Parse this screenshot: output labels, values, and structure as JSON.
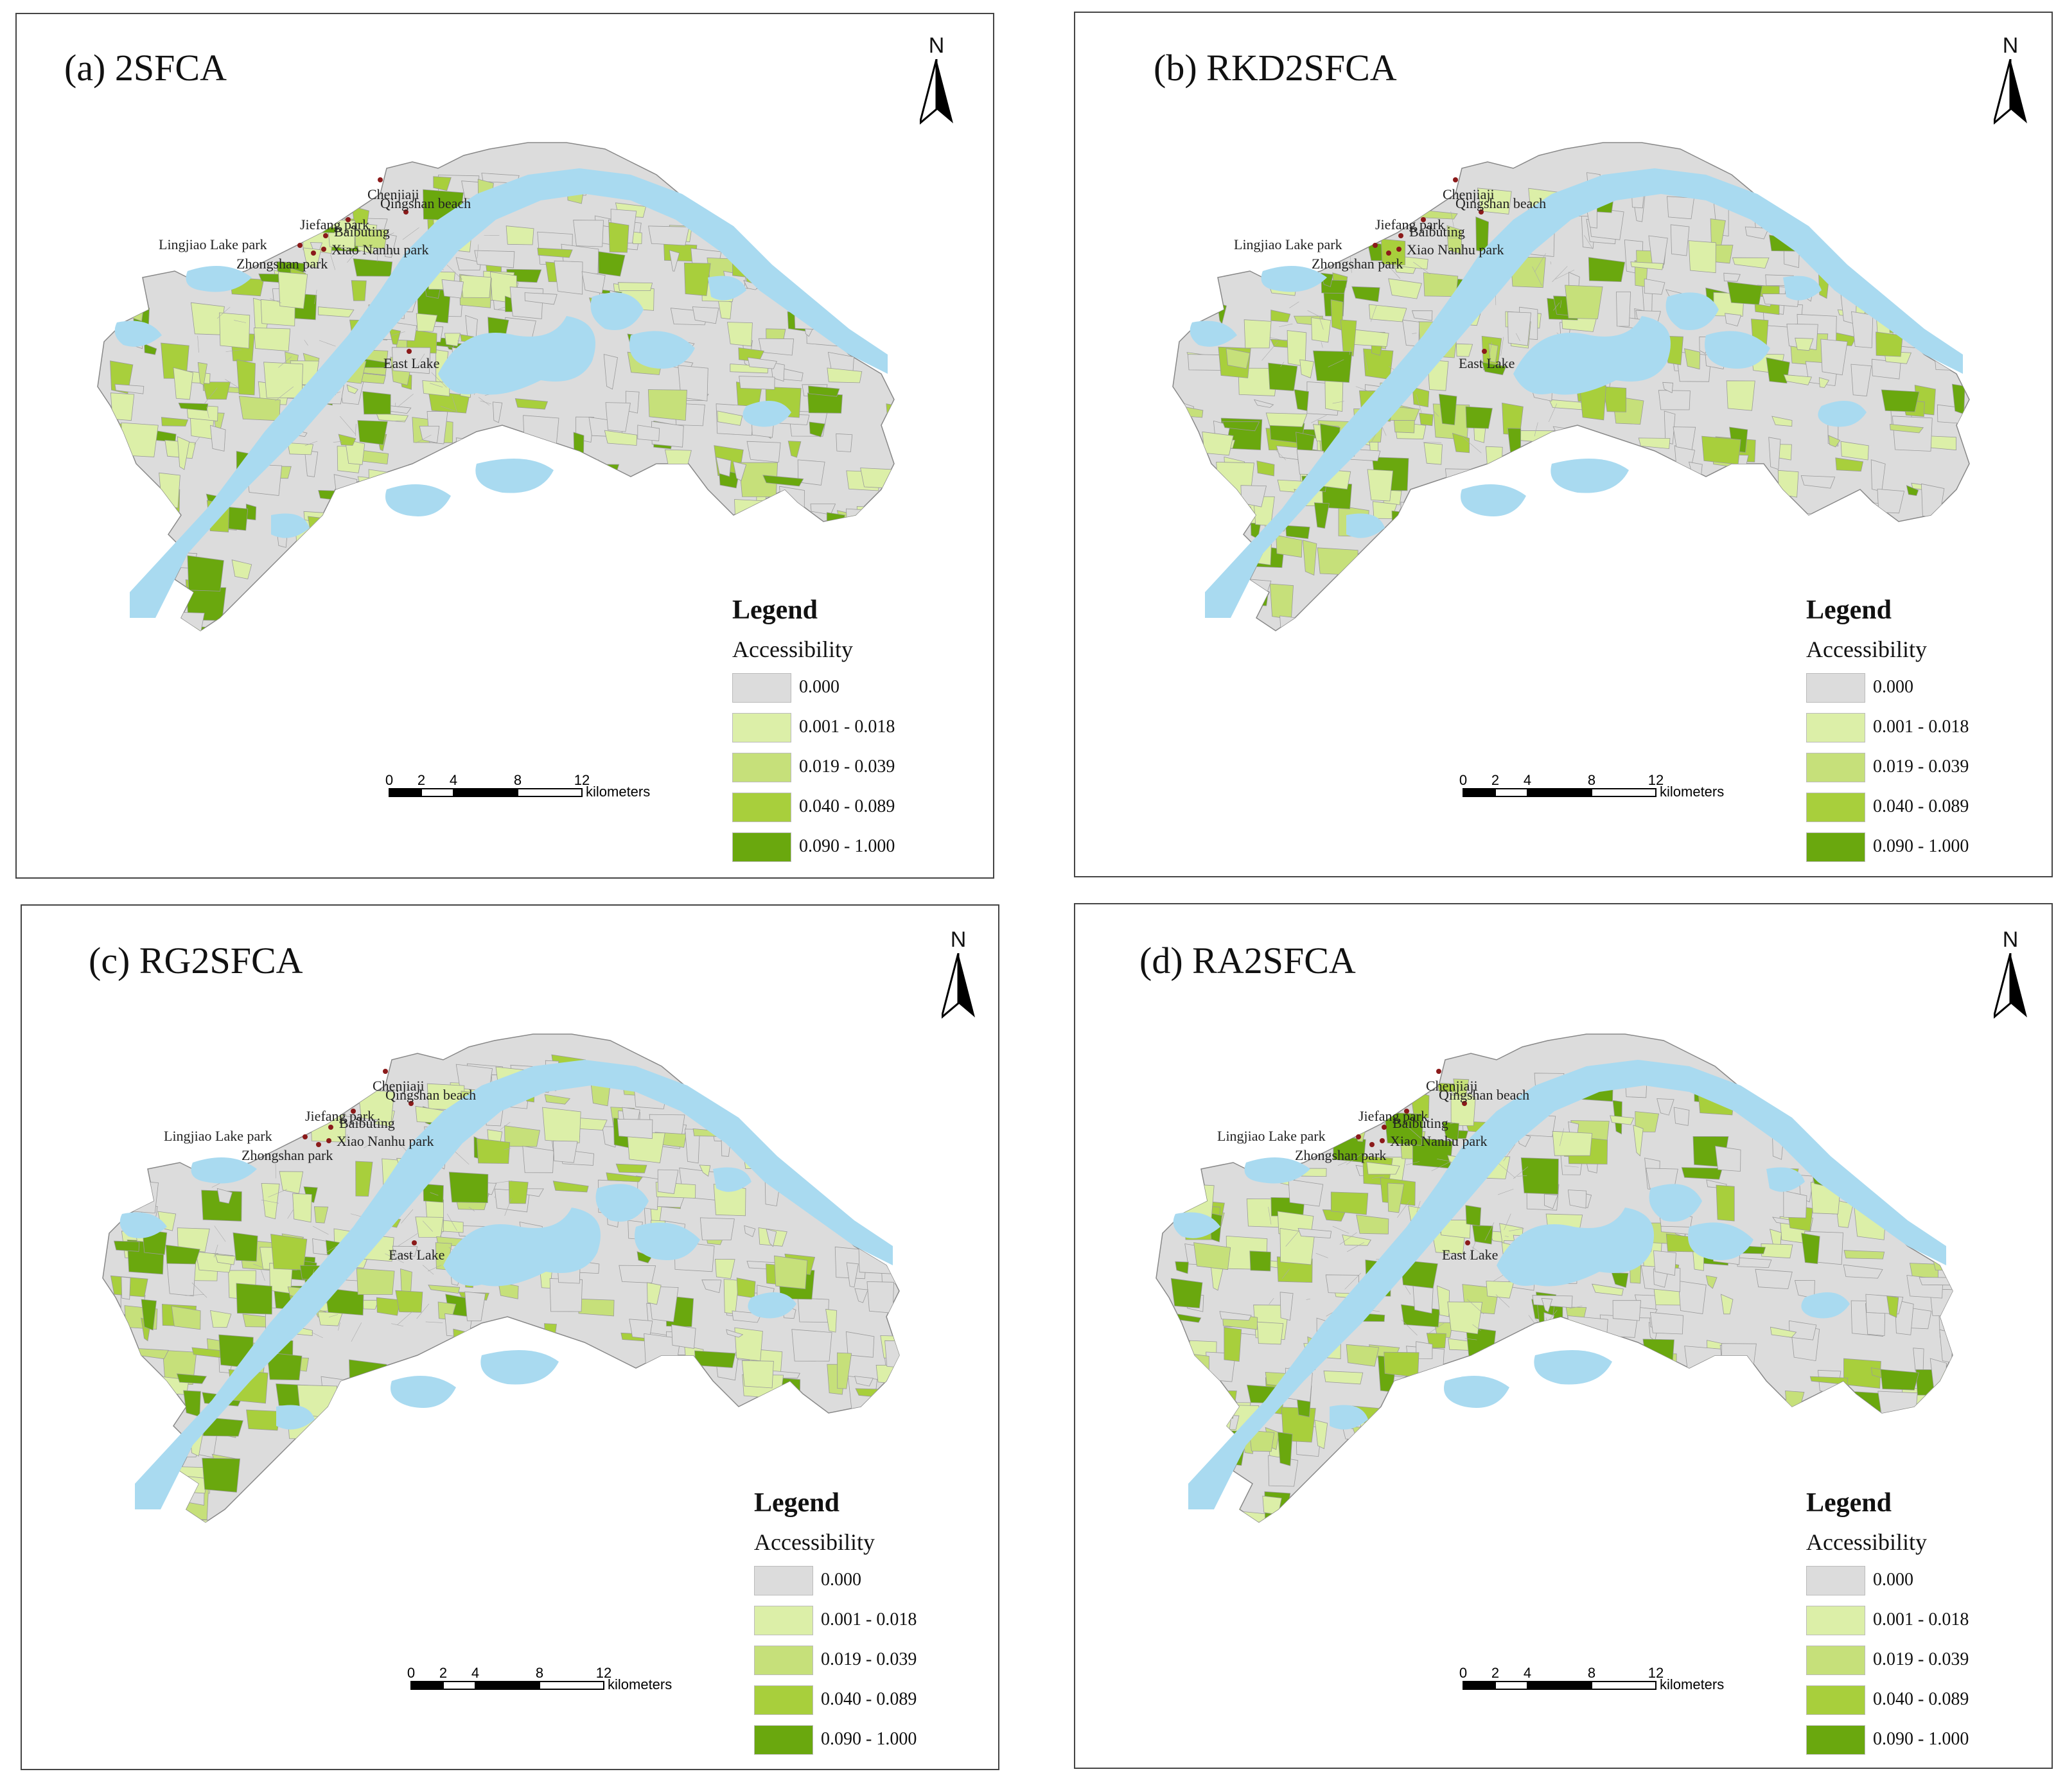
{
  "panels": [
    {
      "title": "(a) 2SFCA"
    },
    {
      "title": "(b) RKD2SFCA"
    },
    {
      "title": "(c) RG2SFCA"
    },
    {
      "title": "(d) RA2SFCA"
    }
  ],
  "north_label": "N",
  "legend": {
    "title": "Legend",
    "subtitle": "Accessibility",
    "classes": [
      {
        "label": "0.000",
        "color": "#dcdcdc"
      },
      {
        "label": "0.001 - 0.018",
        "color": "#dcefa8"
      },
      {
        "label": "0.019 - 0.039",
        "color": "#c6e07a"
      },
      {
        "label": "0.040 - 0.089",
        "color": "#a8cf3c"
      },
      {
        "label": "0.090 - 1.000",
        "color": "#6aa80e"
      }
    ]
  },
  "scale": {
    "ticks": [
      "0",
      "2",
      "4",
      "8",
      "12"
    ],
    "unit": "kilometers"
  },
  "places": [
    "Chenjiaji",
    "Qingshan beach",
    "Baibuting",
    "Jiefang park",
    "Lingjiao Lake park",
    "Xiao Nanhu park",
    "Zhongshan park",
    "East Lake"
  ],
  "colors": {
    "water": "#a9daf0",
    "base": "#dcdcdc",
    "boundary": "#888888",
    "poi": "#8b1a1a"
  }
}
